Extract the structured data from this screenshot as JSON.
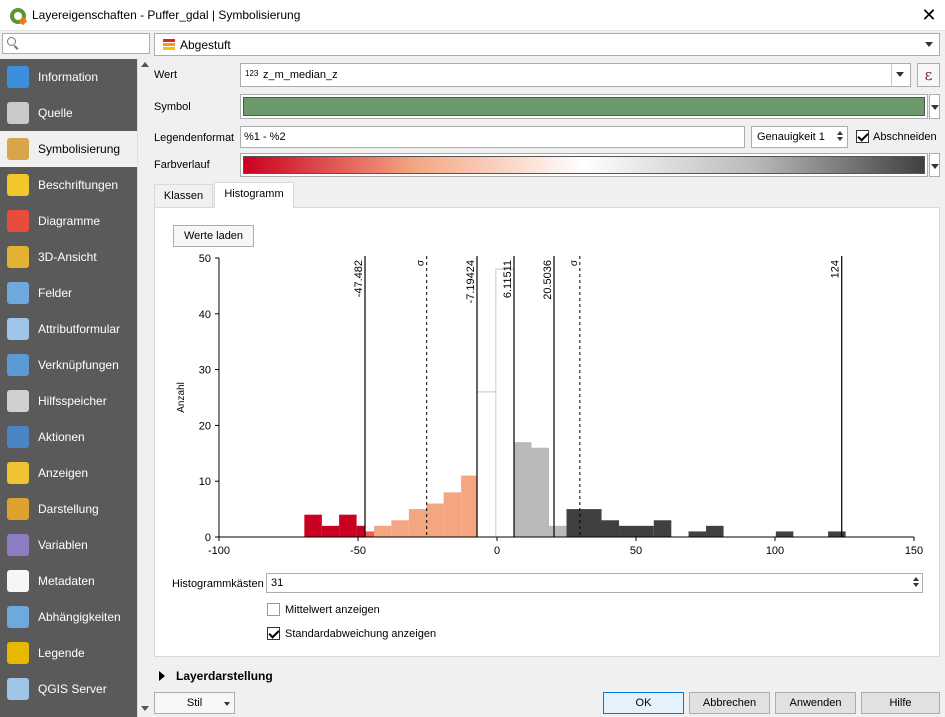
{
  "window": {
    "title": "Layereigenschaften - Puffer_gdal | Symbolisierung",
    "close_label": "✕"
  },
  "sidebar": {
    "search_placeholder": "",
    "items": [
      {
        "label": "Information",
        "icon": "info-icon",
        "color": "#3c8fdc"
      },
      {
        "label": "Quelle",
        "icon": "source-icon",
        "color": "#c9c9c9"
      },
      {
        "label": "Symbolisierung",
        "icon": "brush-icon",
        "color": "#d9a54a",
        "active": true
      },
      {
        "label": "Beschriftungen",
        "icon": "label-abc-icon",
        "color": "#f3c72b"
      },
      {
        "label": "Diagramme",
        "icon": "diagram-icon",
        "color": "#e74c3c"
      },
      {
        "label": "3D-Ansicht",
        "icon": "cube-3d-icon",
        "color": "#e3b232"
      },
      {
        "label": "Felder",
        "icon": "fields-icon",
        "color": "#6fa8dc"
      },
      {
        "label": "Attributformular",
        "icon": "form-icon",
        "color": "#9fc5e8"
      },
      {
        "label": "Verknüpfungen",
        "icon": "join-icon",
        "color": "#5b9bd5"
      },
      {
        "label": "Hilfsspeicher",
        "icon": "storage-icon",
        "color": "#d0d0d0"
      },
      {
        "label": "Aktionen",
        "icon": "actions-gear-icon",
        "color": "#4a86c5"
      },
      {
        "label": "Anzeigen",
        "icon": "display-bubble-icon",
        "color": "#f1c232"
      },
      {
        "label": "Darstellung",
        "icon": "rendering-brush-icon",
        "color": "#e0a030"
      },
      {
        "label": "Variablen",
        "icon": "variables-epsilon-icon",
        "color": "#8e7cc3"
      },
      {
        "label": "Metadaten",
        "icon": "metadata-icon",
        "color": "#f6f6f6"
      },
      {
        "label": "Abhängigkeiten",
        "icon": "dependencies-icon",
        "color": "#6fa8dc"
      },
      {
        "label": "Legende",
        "icon": "legend-icon",
        "color": "#e6b800"
      },
      {
        "label": "QGIS Server",
        "icon": "server-icon",
        "color": "#9fc5e8"
      }
    ]
  },
  "renderer": {
    "value": "Abgestuft"
  },
  "form": {
    "wert_label": "Wert",
    "wert_value": "z_m_median_z",
    "wert_type_badge": "123",
    "symbol_label": "Symbol",
    "symbol_color": "#6a9a6c",
    "legendenformat_label": "Legendenformat",
    "legendenformat_value": "%1 - %2",
    "genauigkeit_label": "Genauigkeit 1",
    "abschneiden_label": "Abschneiden",
    "farbverlauf_label": "Farbverlauf",
    "expression_icon": "ε"
  },
  "tabs": [
    {
      "label": "Klassen"
    },
    {
      "label": "Histogramm",
      "active": true
    }
  ],
  "histogram": {
    "load_button": "Werte laden",
    "bins_label": "Histogrammkästen",
    "bins_value": "31",
    "show_mean_label": "Mittelwert anzeigen",
    "show_mean_checked": false,
    "show_std_label": "Standardabweichung anzeigen",
    "show_std_checked": true
  },
  "chart_data": {
    "type": "bar",
    "ylabel": "Anzahl",
    "xlim": [
      -100,
      150
    ],
    "ylim": [
      0,
      50
    ],
    "xticks": [
      -100,
      -50,
      0,
      50,
      100,
      150
    ],
    "yticks": [
      0,
      10,
      20,
      30,
      40,
      50
    ],
    "bars": [
      {
        "x0": -69.3,
        "x1": -63.0,
        "value": 4,
        "color": "#ca0020"
      },
      {
        "x0": -63.0,
        "x1": -56.8,
        "value": 2,
        "color": "#ca0020"
      },
      {
        "x0": -56.8,
        "x1": -50.5,
        "value": 4,
        "color": "#ca0020"
      },
      {
        "x0": -50.5,
        "x1": -47.5,
        "value": 2,
        "color": "#ca0020"
      },
      {
        "x0": -47.5,
        "x1": -44.2,
        "value": 1,
        "color": "#ef5a54"
      },
      {
        "x0": -44.2,
        "x1": -38.0,
        "value": 2,
        "color": "#f4a582"
      },
      {
        "x0": -38.0,
        "x1": -31.7,
        "value": 3,
        "color": "#f4a582"
      },
      {
        "x0": -31.7,
        "x1": -25.4,
        "value": 5,
        "color": "#f4a582"
      },
      {
        "x0": -25.4,
        "x1": -19.2,
        "value": 6,
        "color": "#f4a582"
      },
      {
        "x0": -19.2,
        "x1": -12.9,
        "value": 8,
        "color": "#f4a582"
      },
      {
        "x0": -12.9,
        "x1": -7.2,
        "value": 11,
        "color": "#f4a582"
      },
      {
        "x0": -7.2,
        "x1": -0.4,
        "value": 26,
        "color": "#ffffff"
      },
      {
        "x0": -0.4,
        "x1": 6.1,
        "value": 48,
        "color": "#ffffff"
      },
      {
        "x0": 6.1,
        "x1": 12.4,
        "value": 17,
        "color": "#bababa"
      },
      {
        "x0": 12.4,
        "x1": 18.7,
        "value": 16,
        "color": "#bababa"
      },
      {
        "x0": 18.7,
        "x1": 25.0,
        "value": 2,
        "color": "#bababa"
      },
      {
        "x0": 25.0,
        "x1": 37.6,
        "value": 5,
        "color": "#404040"
      },
      {
        "x0": 37.6,
        "x1": 43.9,
        "value": 3,
        "color": "#404040"
      },
      {
        "x0": 43.9,
        "x1": 56.4,
        "value": 2,
        "color": "#404040"
      },
      {
        "x0": 56.4,
        "x1": 62.7,
        "value": 3,
        "color": "#404040"
      },
      {
        "x0": 68.9,
        "x1": 75.2,
        "value": 1,
        "color": "#404040"
      },
      {
        "x0": 75.2,
        "x1": 81.5,
        "value": 2,
        "color": "#404040"
      },
      {
        "x0": 100.3,
        "x1": 106.6,
        "value": 1,
        "color": "#404040"
      },
      {
        "x0": 119.1,
        "x1": 125.4,
        "value": 1,
        "color": "#404040"
      }
    ],
    "breaks": [
      {
        "x": -47.482,
        "label": "-47.482"
      },
      {
        "x": -7.19424,
        "label": "-7.19424"
      },
      {
        "x": 6.11511,
        "label": "6.11511"
      },
      {
        "x": 20.5036,
        "label": "20.5036"
      },
      {
        "x": 124,
        "label": "124"
      }
    ],
    "std_lines": [
      {
        "x": -25.3,
        "label": "σ"
      },
      {
        "x": 29.8,
        "label": "σ"
      }
    ]
  },
  "collapsible": {
    "label": "Layerdarstellung"
  },
  "footer": {
    "style_button": "Stil",
    "ok": "OK",
    "cancel": "Abbrechen",
    "apply": "Anwenden",
    "help": "Hilfe"
  }
}
